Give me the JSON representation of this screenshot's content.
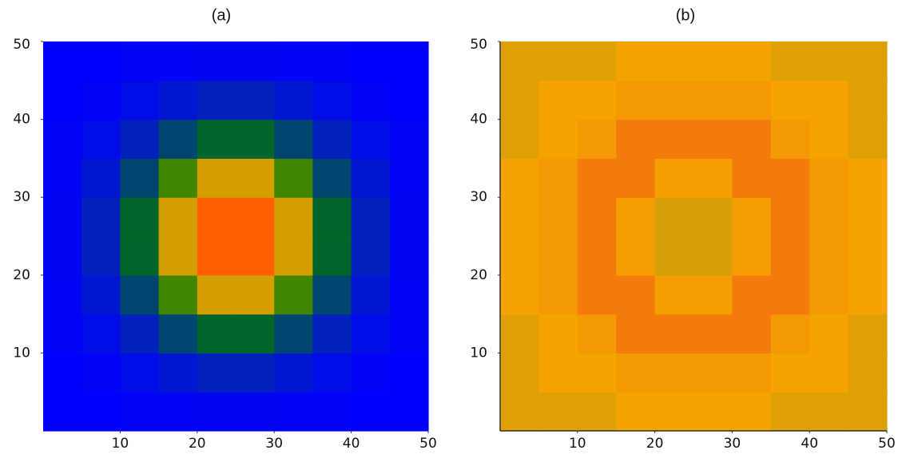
{
  "chart_data": [
    {
      "type": "heatmap",
      "title": "(a)",
      "xlim": [
        0,
        50
      ],
      "ylim": [
        0,
        50
      ],
      "xticks": [
        10,
        20,
        30,
        40,
        50
      ],
      "yticks": [
        10,
        20,
        30,
        40,
        50
      ],
      "zlim": [
        0,
        1
      ],
      "colormap": [
        "#0000ff",
        "#007a00",
        "#ffa500",
        "#ff4500"
      ],
      "axis_lines": false,
      "z": [
        [
          0,
          0,
          0.01,
          0.01,
          0.02,
          0.02,
          0.01,
          0.01,
          0,
          0
        ],
        [
          0,
          0.01,
          0.03,
          0.06,
          0.09,
          0.09,
          0.06,
          0.03,
          0.01,
          0
        ],
        [
          0.01,
          0.03,
          0.09,
          0.19,
          0.28,
          0.28,
          0.19,
          0.09,
          0.03,
          0.01
        ],
        [
          0.01,
          0.06,
          0.19,
          0.42,
          0.61,
          0.61,
          0.42,
          0.19,
          0.06,
          0.01
        ],
        [
          0.02,
          0.09,
          0.28,
          0.61,
          0.91,
          0.91,
          0.61,
          0.28,
          0.09,
          0.02
        ],
        [
          0.02,
          0.09,
          0.28,
          0.61,
          0.91,
          0.91,
          0.61,
          0.28,
          0.09,
          0.02
        ],
        [
          0.01,
          0.06,
          0.19,
          0.42,
          0.61,
          0.61,
          0.42,
          0.19,
          0.06,
          0.01
        ],
        [
          0.01,
          0.03,
          0.09,
          0.19,
          0.28,
          0.28,
          0.19,
          0.09,
          0.03,
          0.01
        ],
        [
          0,
          0.01,
          0.03,
          0.06,
          0.09,
          0.09,
          0.06,
          0.03,
          0.01,
          0
        ],
        [
          0,
          0,
          0.01,
          0.01,
          0.02,
          0.02,
          0.01,
          0.01,
          0,
          0
        ]
      ]
    },
    {
      "type": "heatmap",
      "title": "(b)",
      "xlim": [
        0,
        50
      ],
      "ylim": [
        0,
        50
      ],
      "xticks": [
        10,
        20,
        30,
        40,
        50
      ],
      "yticks": [
        10,
        20,
        30,
        40,
        50
      ],
      "zlim": [
        0,
        1
      ],
      "colormap": [
        "#a89a12",
        "#f5a300",
        "#f06a10"
      ],
      "axis_lines": true,
      "z": [
        [
          0.35,
          0.35,
          0.35,
          0.5,
          0.5,
          0.5,
          0.5,
          0.35,
          0.35,
          0.35
        ],
        [
          0.35,
          0.5,
          0.5,
          0.6,
          0.6,
          0.6,
          0.6,
          0.5,
          0.5,
          0.35
        ],
        [
          0.35,
          0.5,
          0.6,
          0.85,
          0.85,
          0.85,
          0.85,
          0.6,
          0.5,
          0.35
        ],
        [
          0.5,
          0.6,
          0.85,
          0.85,
          0.55,
          0.55,
          0.85,
          0.85,
          0.6,
          0.5
        ],
        [
          0.5,
          0.6,
          0.85,
          0.55,
          0.3,
          0.3,
          0.55,
          0.85,
          0.6,
          0.5
        ],
        [
          0.5,
          0.6,
          0.85,
          0.55,
          0.3,
          0.3,
          0.55,
          0.85,
          0.6,
          0.5
        ],
        [
          0.5,
          0.6,
          0.85,
          0.85,
          0.55,
          0.55,
          0.85,
          0.85,
          0.6,
          0.5
        ],
        [
          0.35,
          0.5,
          0.6,
          0.85,
          0.85,
          0.85,
          0.85,
          0.6,
          0.5,
          0.35
        ],
        [
          0.35,
          0.5,
          0.5,
          0.6,
          0.6,
          0.6,
          0.6,
          0.5,
          0.5,
          0.35
        ],
        [
          0.35,
          0.35,
          0.35,
          0.5,
          0.5,
          0.5,
          0.5,
          0.35,
          0.35,
          0.35
        ]
      ]
    }
  ]
}
